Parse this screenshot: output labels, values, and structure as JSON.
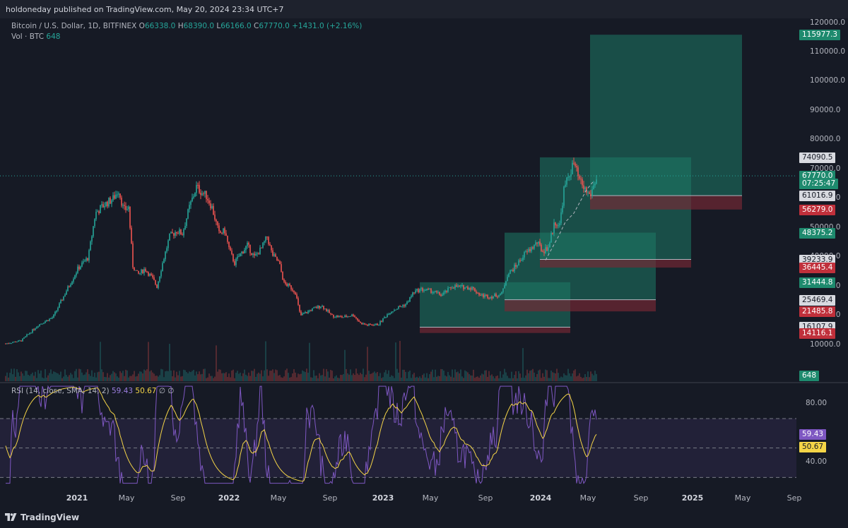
{
  "header": {
    "published": "holdoneday published on TradingView.com, May 20, 2024 23:34 UTC+7"
  },
  "legend": {
    "symbol": "Bitcoin / U.S. Dollar, 1D, BITFINEX",
    "o_label": "O",
    "o_val": "66338.0",
    "h_label": "H",
    "h_val": "68390.0",
    "l_label": "L",
    "l_val": "66166.0",
    "c_label": "C",
    "c_val": "67770.0",
    "change": "+1431.0 (+2.16%)",
    "vol_label": "Vol · BTC",
    "vol_val": "648"
  },
  "price_axis": [
    "120000.0",
    "110000.0",
    "100000.0",
    "90000.0",
    "80000.0",
    "70000.0",
    "60000.0",
    "50000.0",
    "40000.0",
    "30000.0",
    "20000.0",
    "10000.0"
  ],
  "price_tags": [
    {
      "text": "115977.3",
      "kind": "green"
    },
    {
      "text": "74090.5",
      "kind": "gray"
    },
    {
      "text": "67770.0",
      "kind": "green"
    },
    {
      "text": "07:25:47",
      "kind": "green"
    },
    {
      "text": "61016.9",
      "kind": "gray"
    },
    {
      "text": "56279.0",
      "kind": "red"
    },
    {
      "text": "48375.2",
      "kind": "green"
    },
    {
      "text": "39233.9",
      "kind": "gray"
    },
    {
      "text": "36445.4",
      "kind": "red"
    },
    {
      "text": "31444.8",
      "kind": "green"
    },
    {
      "text": "25469.4",
      "kind": "gray"
    },
    {
      "text": "21485.8",
      "kind": "red"
    },
    {
      "text": "16107.9",
      "kind": "gray"
    },
    {
      "text": "14116.1",
      "kind": "red"
    },
    {
      "text": "648",
      "kind": "green"
    }
  ],
  "rsi": {
    "label": "RSI (14, close, SMA, 14, 2)",
    "rsi_val": "59.43",
    "sma_val": "50.67",
    "extra": "∅ ∅",
    "axis": [
      "80.00",
      "40.00"
    ],
    "tags": [
      {
        "text": "59.43",
        "kind": "purple"
      },
      {
        "text": "50.67",
        "kind": "yellow"
      }
    ]
  },
  "time_axis": [
    {
      "text": "2021",
      "bold": true
    },
    {
      "text": "May",
      "bold": false
    },
    {
      "text": "Sep",
      "bold": false
    },
    {
      "text": "2022",
      "bold": true
    },
    {
      "text": "May",
      "bold": false
    },
    {
      "text": "Sep",
      "bold": false
    },
    {
      "text": "2023",
      "bold": true
    },
    {
      "text": "May",
      "bold": false
    },
    {
      "text": "Sep",
      "bold": false
    },
    {
      "text": "2024",
      "bold": true
    },
    {
      "text": "May",
      "bold": false
    },
    {
      "text": "Sep",
      "bold": false
    },
    {
      "text": "2025",
      "bold": true
    },
    {
      "text": "May",
      "bold": false
    },
    {
      "text": "Sep",
      "bold": false
    }
  ],
  "footer": {
    "brand": "TradingView"
  },
  "colors": {
    "up": "#26a69a",
    "down": "#ef5350",
    "rsi": "#7e57c2",
    "rsi_sma": "#f5d547",
    "target": "#1f6f5e",
    "stop": "#6b2531"
  }
}
